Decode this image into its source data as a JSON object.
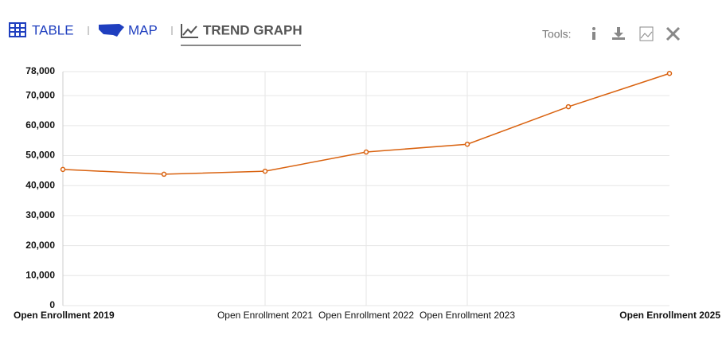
{
  "toolbar": {
    "tabs": [
      "TABLE",
      "MAP",
      "TREND GRAPH"
    ],
    "tools_label": "Tools:"
  },
  "chart_data": {
    "type": "line",
    "categories": [
      "Open Enrollment 2019",
      null,
      "Open Enrollment 2021",
      "Open Enrollment 2022",
      "Open Enrollment 2023",
      null,
      "Open Enrollment 2025"
    ],
    "series": [
      {
        "color": "#d9620f",
        "values": [
          45400,
          43800,
          44800,
          51200,
          53800,
          66300,
          77400
        ]
      }
    ],
    "ylim": [
      0,
      78000
    ],
    "yticks": [
      0,
      {
        "value": 10000,
        "label": "10,000"
      },
      {
        "value": 20000,
        "label": "20,000"
      },
      {
        "value": 30000,
        "label": "30,000"
      },
      {
        "value": 40000,
        "label": "40,000"
      },
      {
        "value": 50000,
        "label": "50,000"
      },
      {
        "value": 60000,
        "label": "60,000"
      },
      {
        "value": 70000,
        "label": "70,000"
      },
      {
        "value": 78000,
        "label": "78,000"
      }
    ],
    "grid": true
  }
}
